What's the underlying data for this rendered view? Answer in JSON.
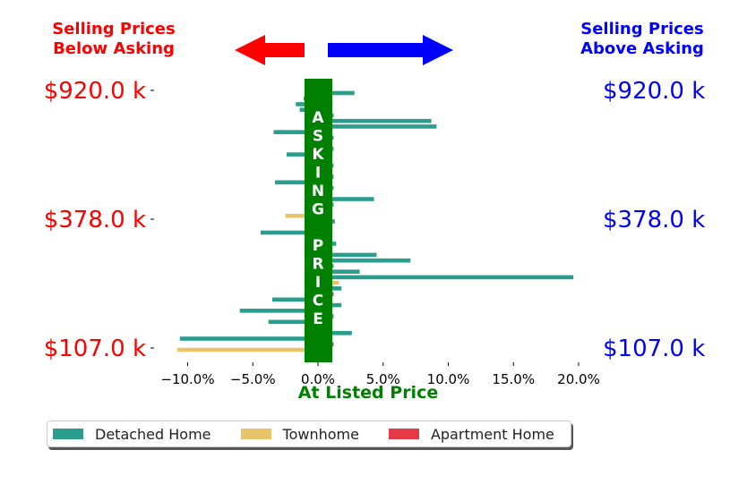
{
  "chart_data": {
    "type": "bar",
    "orientation": "horizontal",
    "left_header": "Selling Prices\nBelow Asking",
    "right_header": "Selling Prices\nAbove Asking",
    "center_band_label": "ASKING PRICE",
    "xlabel": "At Listed Price",
    "xlim": [
      -12.5,
      21.5
    ],
    "xticks": [
      -10,
      -5,
      0,
      5,
      10,
      15,
      20
    ],
    "xtick_labels": [
      "−10.0%",
      "−5.0%",
      "0.0%",
      "5.0%",
      "10.0%",
      "15.0%",
      "20.0%"
    ],
    "y_tick_labels": [
      "$920.0 k",
      "$378.0 k",
      "$107.0 k"
    ],
    "colors": {
      "Detached Home": "#2a9d8f",
      "Townhome": "#e9c46a",
      "Apartment Home": "#e63946",
      "below": "#ff0000",
      "above": "#0000ff",
      "band": "#008000"
    },
    "legend": [
      "Detached Home",
      "Townhome",
      "Apartment Home"
    ],
    "legend_location": "bottom",
    "bars": [
      {
        "type": "Detached Home",
        "value": 2.8
      },
      {
        "type": "Detached Home",
        "value": -1.1
      },
      {
        "type": "Detached Home",
        "value": -1.7
      },
      {
        "type": "Detached Home",
        "value": -1.4
      },
      {
        "type": "Detached Home",
        "value": 1.2
      },
      {
        "type": "Detached Home",
        "value": 8.7
      },
      {
        "type": "Detached Home",
        "value": 9.1
      },
      {
        "type": "Detached Home",
        "value": -3.4
      },
      {
        "type": "Detached Home",
        "value": 1.2
      },
      {
        "type": "Detached Home",
        "value": 1.1
      },
      {
        "type": "Detached Home",
        "value": 1.2
      },
      {
        "type": "Detached Home",
        "value": -2.4
      },
      {
        "type": "Detached Home",
        "value": -0.9
      },
      {
        "type": "Detached Home",
        "value": 1.2
      },
      {
        "type": "Detached Home",
        "value": 1.1
      },
      {
        "type": "Detached Home",
        "value": 1.2
      },
      {
        "type": "Detached Home",
        "value": -3.3
      },
      {
        "type": "Detached Home",
        "value": 1.2
      },
      {
        "type": "Detached Home",
        "value": 1.1
      },
      {
        "type": "Detached Home",
        "value": 4.3
      },
      {
        "type": "Detached Home",
        "value": 1.2
      },
      {
        "type": "Detached Home",
        "value": 1.1
      },
      {
        "type": "Townhome",
        "value": -2.5
      },
      {
        "type": "Detached Home",
        "value": 1.3
      },
      {
        "type": "Detached Home",
        "value": 1.1
      },
      {
        "type": "Detached Home",
        "value": -4.4
      },
      {
        "type": "Detached Home",
        "value": 1.1
      },
      {
        "type": "Detached Home",
        "value": 1.4
      },
      {
        "type": "Detached Home",
        "value": 1.1
      },
      {
        "type": "Detached Home",
        "value": 4.5
      },
      {
        "type": "Detached Home",
        "value": 7.1
      },
      {
        "type": "Detached Home",
        "value": 1.2
      },
      {
        "type": "Detached Home",
        "value": 3.2
      },
      {
        "type": "Detached Home",
        "value": 19.6
      },
      {
        "type": "Townhome",
        "value": 1.6
      },
      {
        "type": "Detached Home",
        "value": 1.8
      },
      {
        "type": "Apartment Home",
        "value": 1.2
      },
      {
        "type": "Detached Home",
        "value": -3.5
      },
      {
        "type": "Detached Home",
        "value": 1.8
      },
      {
        "type": "Detached Home",
        "value": -6.0
      },
      {
        "type": "Detached Home",
        "value": 1.2
      },
      {
        "type": "Detached Home",
        "value": -3.8
      },
      {
        "type": "Detached Home",
        "value": 1.1
      },
      {
        "type": "Detached Home",
        "value": 2.6
      },
      {
        "type": "Detached Home",
        "value": -10.6
      },
      {
        "type": "Apartment Home",
        "value": 1.2
      },
      {
        "type": "Townhome",
        "value": -10.8
      }
    ]
  }
}
